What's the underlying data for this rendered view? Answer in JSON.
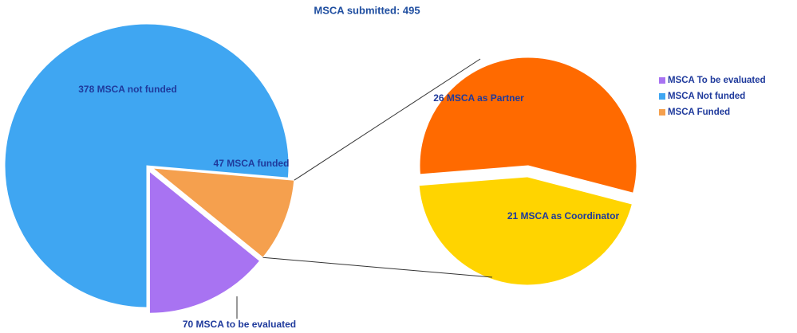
{
  "chart_data": {
    "type": "pie-of-pie",
    "title": "MSCA submitted: 495",
    "categories": [
      "MSCA To be evaluated",
      "MSCA Not funded",
      "MSCA Funded"
    ],
    "values": [
      70,
      378,
      47
    ],
    "value_labels": [
      "70 MSCA to be evaluated",
      "378 MSCA not  funded",
      "47 MSCA funded"
    ],
    "colors": [
      "#a873f2",
      "#3fa6f2",
      "#f5a04e"
    ],
    "legend": "right",
    "breakdown": {
      "values": [
        26,
        21
      ],
      "value_labels": [
        "26 MSCA as Partner",
        "21 MSCA as Coordinator"
      ],
      "colors": [
        "#ff6a00",
        "#ffd400"
      ]
    }
  }
}
